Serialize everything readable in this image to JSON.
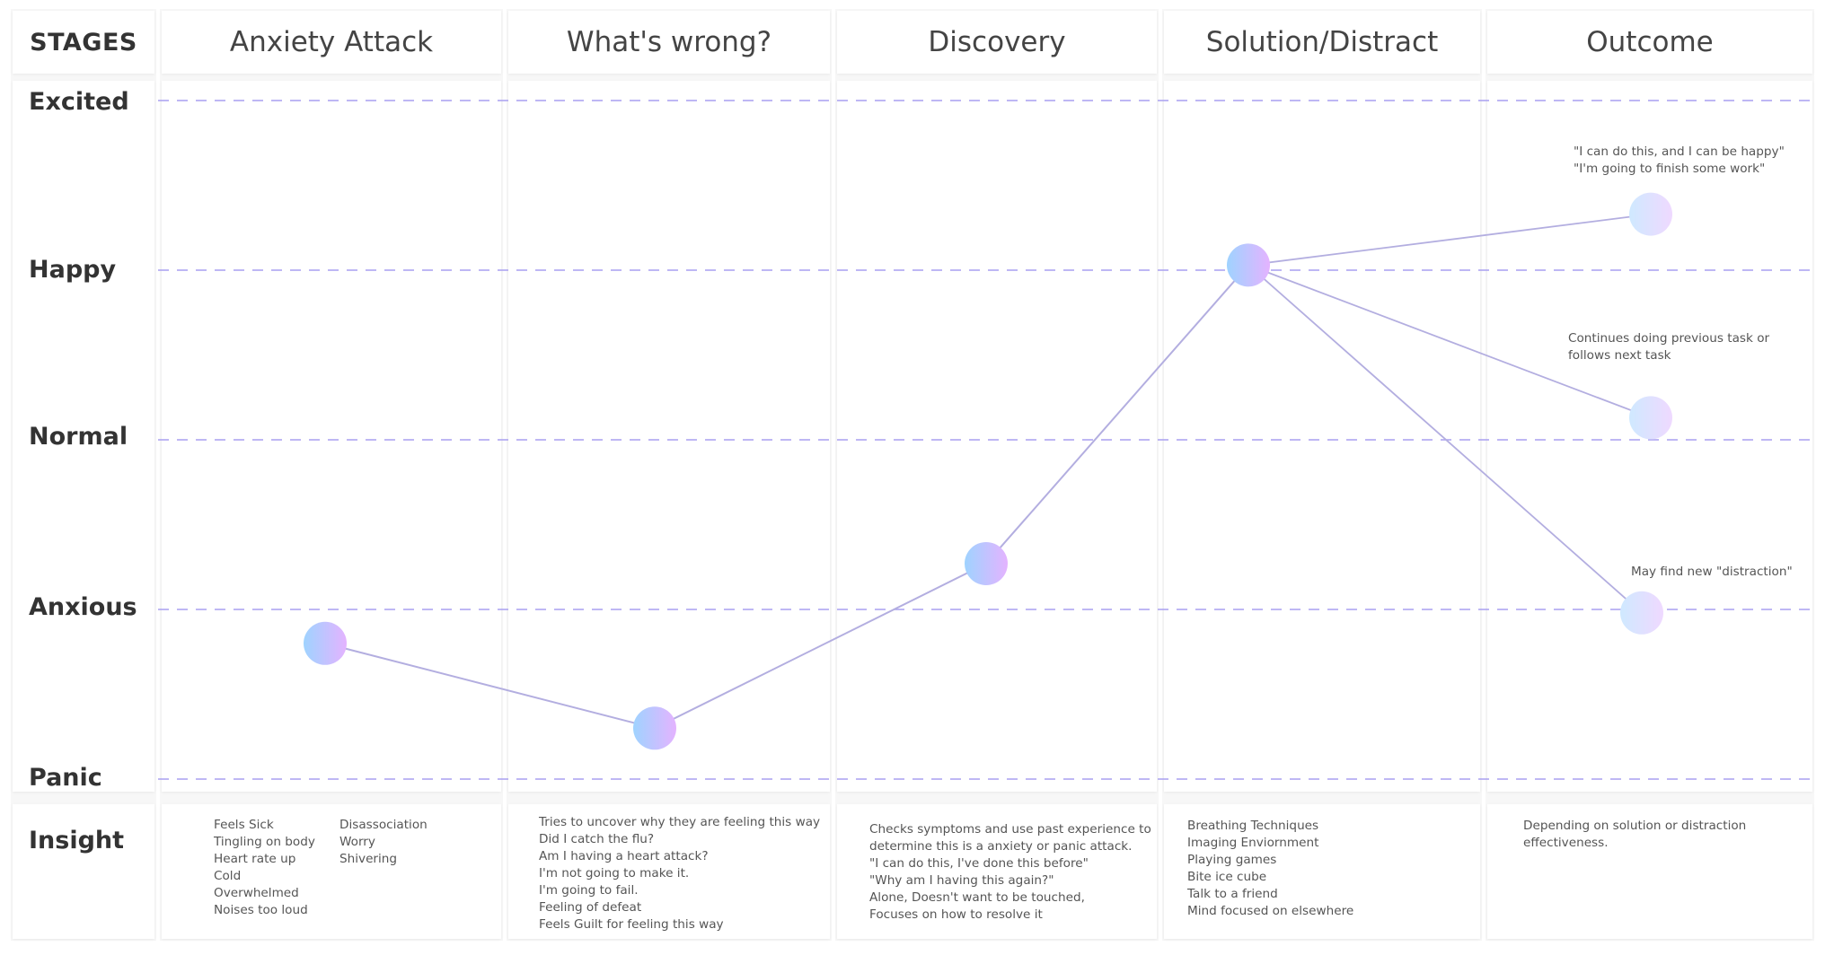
{
  "header": {
    "stages_label": "STAGES"
  },
  "stages": [
    {
      "title": "Anxiety Attack"
    },
    {
      "title": "What's wrong?"
    },
    {
      "title": "Discovery"
    },
    {
      "title": "Solution/Distract"
    },
    {
      "title": "Outcome"
    }
  ],
  "emotions": [
    "Excited",
    "Happy",
    "Normal",
    "Anxious",
    "Panic"
  ],
  "insight_label": "Insight",
  "insights": {
    "anxiety_attack_col1": [
      "Feels Sick",
      "Tingling on body",
      "Heart rate up",
      "Cold",
      "Overwhelmed",
      "Noises too loud"
    ],
    "anxiety_attack_col2": [
      "Disassociation",
      "Worry",
      "Shivering"
    ],
    "whats_wrong": [
      "Tries to uncover why they are feeling this way",
      "Did I catch the flu?",
      "Am I having a heart attack?",
      "I'm not going to make it.",
      "I'm going to fail.",
      "Feeling of defeat",
      "Feels Guilt for feeling this way"
    ],
    "discovery": [
      "Checks symptoms and use past experience to",
      "determine this is a anxiety or panic attack.",
      "\"I can do this, I've done this before\"",
      "\"Why am I having this again?\"",
      "Alone, Doesn't want to be touched,",
      "Focuses on how to resolve it"
    ],
    "solution": [
      "Breathing Techniques",
      "Imaging Enviornment",
      "Playing games",
      "Bite ice cube",
      "Talk to a friend",
      "Mind focused on elsewhere"
    ],
    "outcome": [
      "Depending on solution or distraction",
      "effectiveness."
    ]
  },
  "annotations": {
    "outcome_happy": [
      "\"I can do this, and I can be happy\"",
      "\"I'm going to finish some work\""
    ],
    "outcome_normal": [
      "Continues doing previous task or",
      "follows next task"
    ],
    "outcome_anxious": [
      "May find new \"distraction\""
    ]
  },
  "colors": {
    "guide_line": "#a99ff0",
    "connector": "#b3aee0",
    "node_gradient_start": "#9fd3ff",
    "node_gradient_end": "#e4b3ff",
    "outcome_node_start": "#cfe9ff",
    "outcome_node_end": "#efd9ff"
  },
  "chart_data": {
    "type": "line",
    "categories": [
      "Anxiety Attack",
      "What's wrong?",
      "Discovery",
      "Solution/Distract",
      "Outcome"
    ],
    "y_levels": [
      "Panic",
      "Anxious",
      "Normal",
      "Happy",
      "Excited"
    ],
    "ylim": [
      0,
      4
    ],
    "main_path": [
      {
        "stage": "Anxiety Attack",
        "value": 0.8
      },
      {
        "stage": "What's wrong?",
        "value": 0.3
      },
      {
        "stage": "Discovery",
        "value": 1.27
      },
      {
        "stage": "Solution/Distract",
        "value": 3.03
      }
    ],
    "branches": [
      {
        "from_stage": "Solution/Distract",
        "to_stage": "Outcome",
        "value": 3.33
      },
      {
        "from_stage": "Solution/Distract",
        "to_stage": "Outcome",
        "value": 2.13
      },
      {
        "from_stage": "Solution/Distract",
        "to_stage": "Outcome",
        "value": 0.98
      }
    ]
  }
}
